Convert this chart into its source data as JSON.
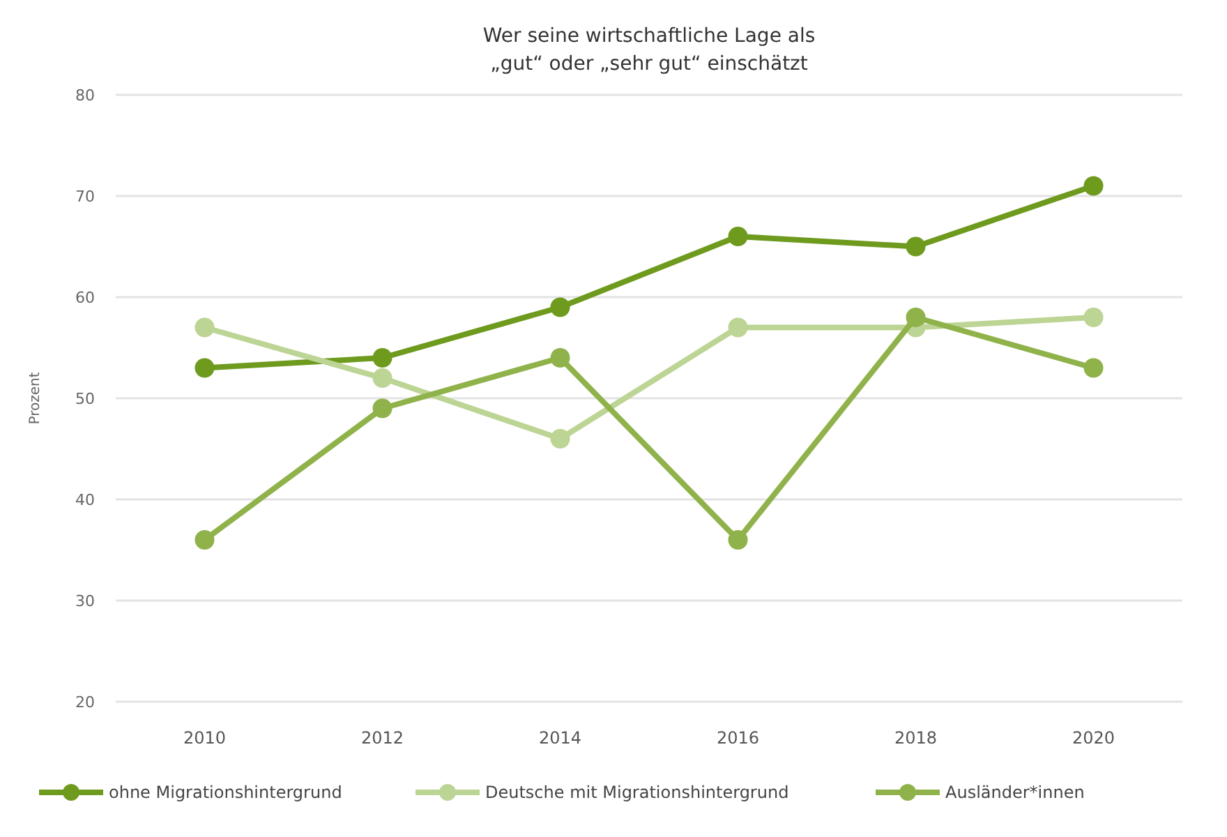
{
  "chart_data": {
    "type": "line",
    "title": "Wer seine wirtschaftliche Lage als\n„gut“ oder „sehr gut“ einschätzt",
    "ylabel": "Prozent",
    "categories": [
      "2010",
      "2012",
      "2014",
      "2016",
      "2018",
      "2020"
    ],
    "series": [
      {
        "name": "ohne Migrationshintergrund",
        "color": "#6e9a1e",
        "values": [
          53,
          54,
          59,
          66,
          65,
          71
        ]
      },
      {
        "name": "Deutsche mit Migrationshintergrund",
        "color": "#bcd494",
        "values": [
          57,
          52,
          46,
          57,
          57,
          58
        ]
      },
      {
        "name": "Ausländer*innen",
        "color": "#8fb24a",
        "values": [
          36,
          49,
          54,
          36,
          58,
          53
        ]
      }
    ],
    "ylim": [
      20,
      80
    ],
    "yticks": [
      20,
      30,
      40,
      50,
      60,
      70,
      80
    ],
    "grid": "y",
    "legend": "bottom",
    "marker": "circle",
    "line_style": "solid"
  }
}
